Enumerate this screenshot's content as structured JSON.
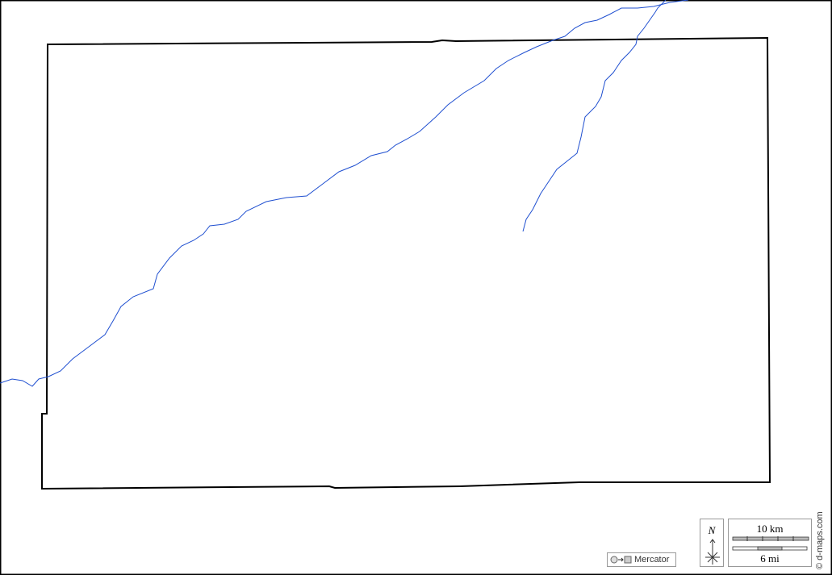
{
  "map": {
    "colors": {
      "border": "#000000",
      "river": "#1f4fd0",
      "frame": "#000000"
    },
    "projection_label": "Mercator",
    "north_label": "N",
    "scale_km": "10 km",
    "scale_mi": "6 mi",
    "credit": "© d-maps.com"
  }
}
